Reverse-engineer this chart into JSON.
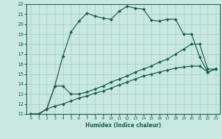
{
  "xlabel": "Humidex (Indice chaleur)",
  "xlim": [
    -0.5,
    23.5
  ],
  "ylim": [
    11,
    22
  ],
  "xticks": [
    0,
    1,
    2,
    3,
    4,
    5,
    6,
    7,
    8,
    9,
    10,
    11,
    12,
    13,
    14,
    15,
    16,
    17,
    18,
    19,
    20,
    21,
    22,
    23
  ],
  "yticks": [
    11,
    12,
    13,
    14,
    15,
    16,
    17,
    18,
    19,
    20,
    21,
    22
  ],
  "bg_color": "#c8e8e0",
  "grid_color": "#a8ccc4",
  "line_color": "#1a5c50",
  "line1_x": [
    0,
    1,
    2,
    3,
    4,
    5,
    6,
    7,
    8,
    9,
    10,
    11,
    12,
    13,
    14,
    15,
    16,
    17,
    18,
    19,
    20,
    21,
    22,
    23
  ],
  "line1_y": [
    11,
    11,
    11.5,
    13.8,
    16.8,
    19.2,
    20.3,
    21.1,
    20.8,
    20.6,
    20.5,
    21.3,
    21.8,
    21.6,
    21.5,
    20.4,
    20.3,
    20.5,
    20.5,
    19.0,
    19.0,
    16.7,
    15.2,
    15.5
  ],
  "line2_x": [
    0,
    1,
    2,
    3,
    4,
    5,
    6,
    7,
    8,
    9,
    10,
    11,
    12,
    13,
    14,
    15,
    16,
    17,
    18,
    19,
    20,
    21,
    22,
    23
  ],
  "line2_y": [
    11,
    11,
    11.5,
    13.8,
    13.8,
    13.0,
    13.0,
    13.2,
    13.5,
    13.8,
    14.2,
    14.5,
    14.8,
    15.2,
    15.5,
    15.8,
    16.2,
    16.5,
    17.0,
    17.5,
    18.0,
    18.0,
    15.5,
    15.5
  ],
  "line3_x": [
    0,
    1,
    2,
    3,
    4,
    5,
    6,
    7,
    8,
    9,
    10,
    11,
    12,
    13,
    14,
    15,
    16,
    17,
    18,
    19,
    20,
    21,
    22,
    23
  ],
  "line3_y": [
    11,
    11,
    11.5,
    11.8,
    12.0,
    12.3,
    12.6,
    12.8,
    13.1,
    13.3,
    13.6,
    13.9,
    14.2,
    14.5,
    14.8,
    15.0,
    15.2,
    15.4,
    15.6,
    15.7,
    15.8,
    15.8,
    15.2,
    15.5
  ]
}
